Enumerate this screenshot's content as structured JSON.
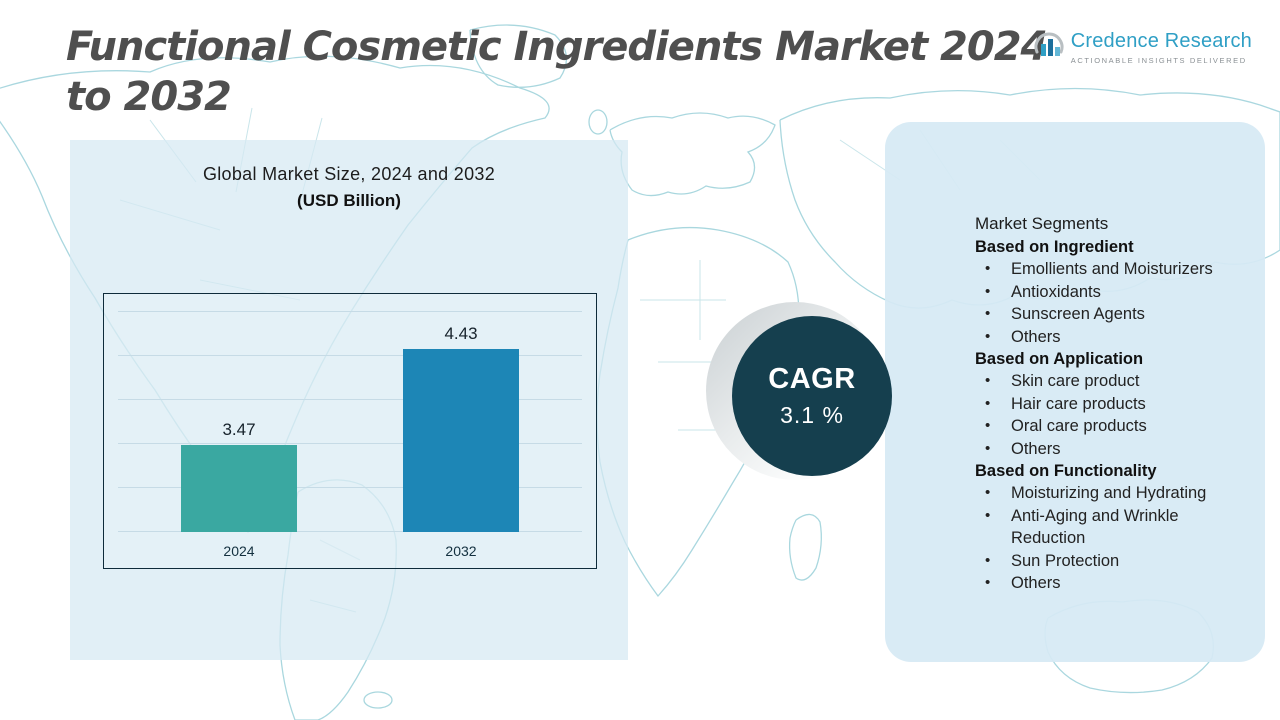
{
  "title": "Functional Cosmetic Ingredients Market 2024 to 2032",
  "logo": {
    "name": "Credence Research",
    "tagline": "Actionable Insights Delivered"
  },
  "chart_data": {
    "type": "bar",
    "title": "Global Market Size, 2024 and 2032",
    "subtitle": "(USD Billion)",
    "categories": [
      "2024",
      "2032"
    ],
    "values": [
      3.47,
      4.43
    ],
    "value_labels": [
      "3.47",
      "4.43"
    ],
    "xlabel": "",
    "ylabel": "",
    "ylim": [
      2.6,
      4.8
    ],
    "grid": true,
    "legend": "none",
    "bar_colors": [
      "#3aa8a1",
      "#1d86b6"
    ]
  },
  "cagr": {
    "label": "CAGR",
    "value": "3.1 %"
  },
  "segments": {
    "title": "Market Segments",
    "groups": [
      {
        "heading": "Based on Ingredient",
        "items": [
          "Emollients and Moisturizers",
          "Antioxidants",
          "Sunscreen Agents",
          "Others"
        ]
      },
      {
        "heading": "Based on Application",
        "items": [
          "Skin care product",
          "Hair care products",
          "Oral care products",
          "Others"
        ]
      },
      {
        "heading": "Based on Functionality",
        "items": [
          "Moisturizing and Hydrating",
          "Anti-Aging and Wrinkle Reduction",
          "Sun Protection",
          "Others"
        ]
      }
    ]
  },
  "colors": {
    "accent_teal": "#3aa8a1",
    "accent_blue": "#1d86b6",
    "cagr_circle": "#153f4e",
    "panel_background": "#d6eaf4",
    "map_outline": "#a5d5dd",
    "title_text": "#4f4f4f",
    "brand_blue": "#2f9fc5"
  }
}
